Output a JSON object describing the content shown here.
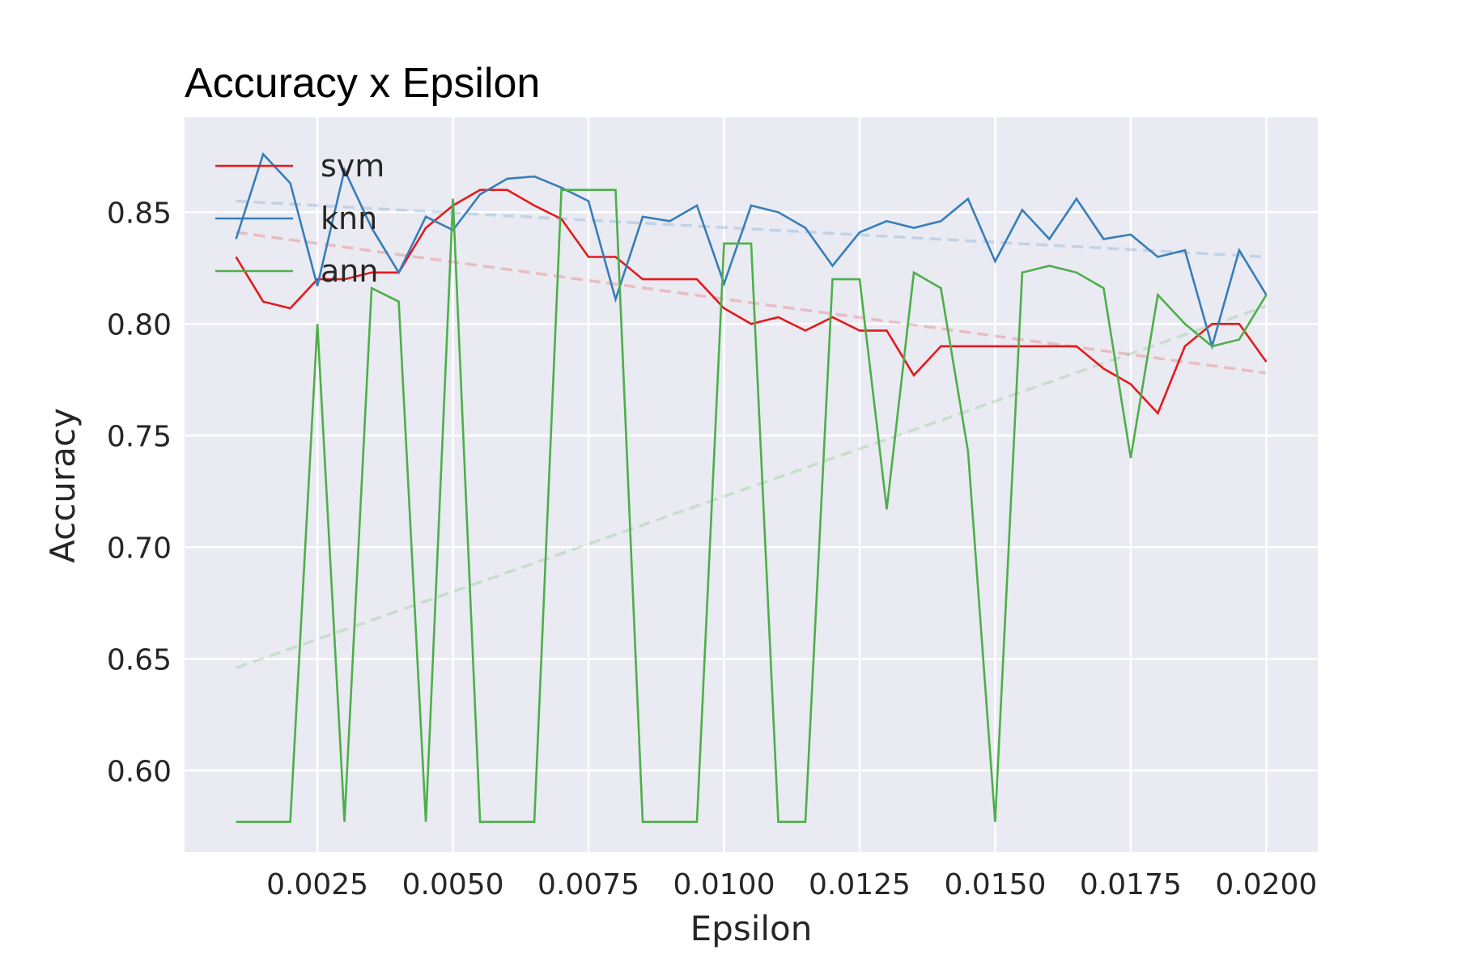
{
  "chart_data": {
    "type": "line",
    "title": "Accuracy x Epsilon",
    "xlabel": "Epsilon",
    "ylabel": "Accuracy",
    "xlim": [
      5e-05,
      0.02095
    ],
    "ylim": [
      0.5635,
      0.8925
    ],
    "xticks": [
      0.0025,
      0.005,
      0.0075,
      0.01,
      0.0125,
      0.015,
      0.0175,
      0.02
    ],
    "xtick_labels": [
      "0.0025",
      "0.0050",
      "0.0075",
      "0.0100",
      "0.0125",
      "0.0150",
      "0.0175",
      "0.0200"
    ],
    "yticks": [
      0.6,
      0.65,
      0.7,
      0.75,
      0.8,
      0.85
    ],
    "ytick_labels": [
      "0.60",
      "0.65",
      "0.70",
      "0.75",
      "0.80",
      "0.85"
    ],
    "grid": true,
    "legend_position": "top-left",
    "x": [
      0.001,
      0.0015,
      0.002,
      0.0025,
      0.003,
      0.0035,
      0.004,
      0.0045,
      0.005,
      0.0055,
      0.006,
      0.0065,
      0.007,
      0.0075,
      0.008,
      0.0085,
      0.009,
      0.0095,
      0.01,
      0.0105,
      0.011,
      0.0115,
      0.012,
      0.0125,
      0.013,
      0.0135,
      0.014,
      0.0145,
      0.015,
      0.0155,
      0.016,
      0.0165,
      0.017,
      0.0175,
      0.018,
      0.0185,
      0.019,
      0.0195,
      0.02
    ],
    "series": [
      {
        "name": "svm",
        "color": "#e41a1c",
        "values": [
          0.83,
          0.81,
          0.807,
          0.82,
          0.82,
          0.823,
          0.823,
          0.843,
          0.853,
          0.86,
          0.86,
          0.853,
          0.847,
          0.83,
          0.83,
          0.82,
          0.82,
          0.82,
          0.807,
          0.8,
          0.803,
          0.797,
          0.803,
          0.797,
          0.797,
          0.777,
          0.79,
          0.79,
          0.79,
          0.79,
          0.79,
          0.79,
          0.78,
          0.773,
          0.76,
          0.79,
          0.8,
          0.8,
          0.783
        ],
        "trend": [
          0.841,
          0.778
        ]
      },
      {
        "name": "knn",
        "color": "#377eb8",
        "values": [
          0.838,
          0.876,
          0.863,
          0.817,
          0.869,
          0.843,
          0.823,
          0.848,
          0.842,
          0.858,
          0.865,
          0.866,
          0.861,
          0.855,
          0.811,
          0.848,
          0.846,
          0.853,
          0.818,
          0.853,
          0.85,
          0.843,
          0.826,
          0.841,
          0.846,
          0.843,
          0.846,
          0.856,
          0.828,
          0.851,
          0.838,
          0.856,
          0.838,
          0.84,
          0.83,
          0.833,
          0.79,
          0.833,
          0.813
        ],
        "trend": [
          0.855,
          0.83
        ]
      },
      {
        "name": "ann",
        "color": "#4daf4a",
        "values": [
          0.577,
          0.577,
          0.577,
          0.8,
          0.577,
          0.816,
          0.81,
          0.577,
          0.856,
          0.577,
          0.577,
          0.577,
          0.86,
          0.86,
          0.86,
          0.577,
          0.577,
          0.577,
          0.836,
          0.836,
          0.577,
          0.577,
          0.82,
          0.82,
          0.717,
          0.823,
          0.816,
          0.743,
          0.577,
          0.823,
          0.826,
          0.823,
          0.816,
          0.74,
          0.813,
          0.8,
          0.79,
          0.793,
          0.813
        ],
        "trend": [
          0.646,
          0.808
        ]
      }
    ]
  }
}
